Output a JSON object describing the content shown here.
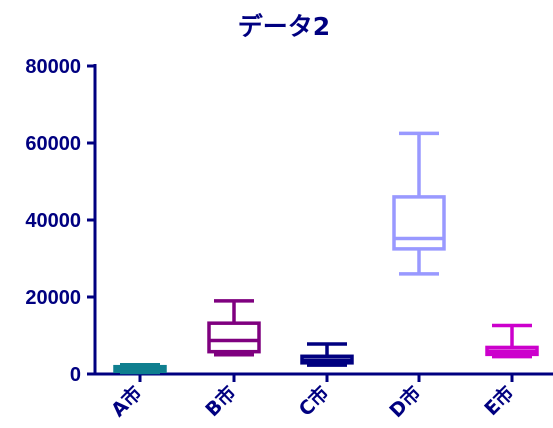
{
  "chart_data": {
    "type": "box",
    "title": "データ2",
    "xlabel": "",
    "ylabel": "",
    "ylim": [
      0,
      80000
    ],
    "yticks": [
      "0",
      "20000",
      "40000",
      "60000",
      "80000"
    ],
    "grid": false,
    "categories": [
      "A市",
      "B市",
      "C市",
      "D市",
      "E市"
    ],
    "series": [
      {
        "category": "A市",
        "min": 400,
        "q1": 700,
        "median": 1300,
        "q3": 1900,
        "max": 2400,
        "color": "#0f7f8f"
      },
      {
        "category": "B市",
        "min": 5000,
        "q1": 5800,
        "median": 8700,
        "q3": 13200,
        "max": 19000,
        "color": "#7f007f"
      },
      {
        "category": "C市",
        "min": 2300,
        "q1": 2900,
        "median": 3600,
        "q3": 4600,
        "max": 7800,
        "color": "#000080"
      },
      {
        "category": "D市",
        "min": 26000,
        "q1": 32500,
        "median": 35200,
        "q3": 46000,
        "max": 62500,
        "color": "#9999ff"
      },
      {
        "category": "E市",
        "min": 4500,
        "q1": 5100,
        "median": 5900,
        "q3": 6900,
        "max": 12600,
        "color": "#cc00cc"
      }
    ],
    "axis_color": "#000080"
  }
}
